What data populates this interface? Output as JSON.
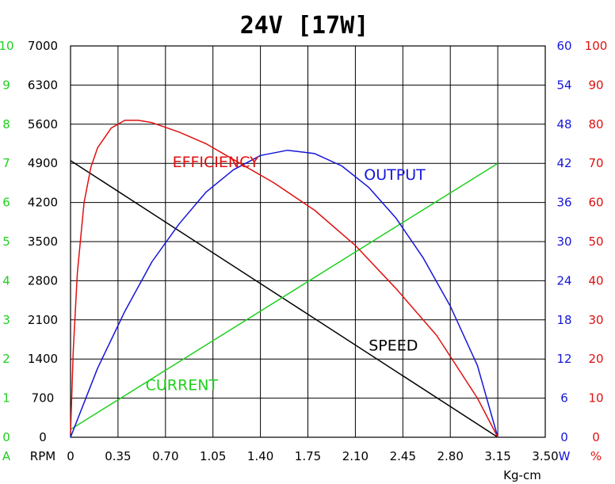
{
  "chart_data": {
    "type": "line",
    "title": "24V [17W]",
    "xlabel": "Kg-cm",
    "x_ticks": [
      "0",
      "0.35",
      "0.70",
      "1.05",
      "1.40",
      "1.75",
      "2.10",
      "2.45",
      "2.80",
      "3.15",
      "3.50"
    ],
    "xlim": [
      0,
      3.5
    ],
    "grid": true,
    "axes": {
      "current": {
        "unit": "A",
        "color": "#1fcf1f",
        "ylim": [
          0,
          10
        ],
        "ticks": [
          "0",
          "1",
          "2",
          "3",
          "4",
          "5",
          "6",
          "7",
          "8",
          "9",
          "10"
        ]
      },
      "speed": {
        "unit": "RPM",
        "color": "#000000",
        "ylim": [
          0,
          7000
        ],
        "ticks": [
          "0",
          "700",
          "1400",
          "2100",
          "2800",
          "3500",
          "4200",
          "4900",
          "5600",
          "6300",
          "7000"
        ]
      },
      "output": {
        "unit": "W",
        "color": "#1515d9",
        "ylim": [
          0,
          60
        ],
        "ticks": [
          "0",
          "6",
          "12",
          "18",
          "24",
          "30",
          "36",
          "42",
          "48",
          "54",
          "60"
        ]
      },
      "efficiency": {
        "unit": "%",
        "color": "#e01010",
        "ylim": [
          0,
          100
        ],
        "ticks": [
          "0",
          "10",
          "20",
          "30",
          "40",
          "50",
          "60",
          "70",
          "80",
          "90",
          "100"
        ]
      }
    },
    "series": [
      {
        "name": "SPEED",
        "axis": "speed",
        "color": "#000000",
        "x": [
          0,
          3.15
        ],
        "y": [
          4950,
          0
        ]
      },
      {
        "name": "CURRENT",
        "axis": "current",
        "color": "#1fcf1f",
        "x": [
          0,
          3.15
        ],
        "y": [
          0.2,
          7.0
        ]
      },
      {
        "name": "OUTPUT",
        "axis": "output",
        "color": "#1515d9",
        "x": [
          0,
          0.2,
          0.4,
          0.6,
          0.8,
          1.0,
          1.2,
          1.4,
          1.6,
          1.8,
          2.0,
          2.2,
          2.4,
          2.6,
          2.8,
          3.0,
          3.15
        ],
        "y": [
          0,
          10.6,
          19.3,
          26.9,
          32.7,
          37.6,
          41.0,
          43.2,
          44.0,
          43.5,
          41.6,
          38.3,
          33.6,
          27.5,
          20.1,
          11.0,
          0
        ]
      },
      {
        "name": "EFFICIENCY",
        "axis": "efficiency",
        "color": "#e01010",
        "x": [
          0,
          0.02,
          0.05,
          0.1,
          0.15,
          0.2,
          0.3,
          0.4,
          0.5,
          0.6,
          0.8,
          1.0,
          1.2,
          1.5,
          1.8,
          2.1,
          2.4,
          2.7,
          3.0,
          3.15
        ],
        "y": [
          1,
          22,
          42,
          60,
          69,
          74,
          79,
          81,
          81,
          80.4,
          78,
          75,
          71,
          65,
          58,
          49,
          38,
          26,
          10,
          0
        ]
      }
    ],
    "labels": [
      {
        "text": "EFFICIENCY",
        "series": "EFFICIENCY",
        "x": 1.07,
        "y_axis": "efficiency",
        "y": 69
      },
      {
        "text": "OUTPUT",
        "series": "OUTPUT",
        "x": 2.39,
        "y_axis": "output",
        "y": 39.5
      },
      {
        "text": "SPEED",
        "series": "SPEED",
        "x": 2.38,
        "y_axis": "speed",
        "y": 1550
      },
      {
        "text": "CURRENT",
        "series": "CURRENT",
        "x": 0.82,
        "y_axis": "current",
        "y": 1.2
      }
    ]
  }
}
